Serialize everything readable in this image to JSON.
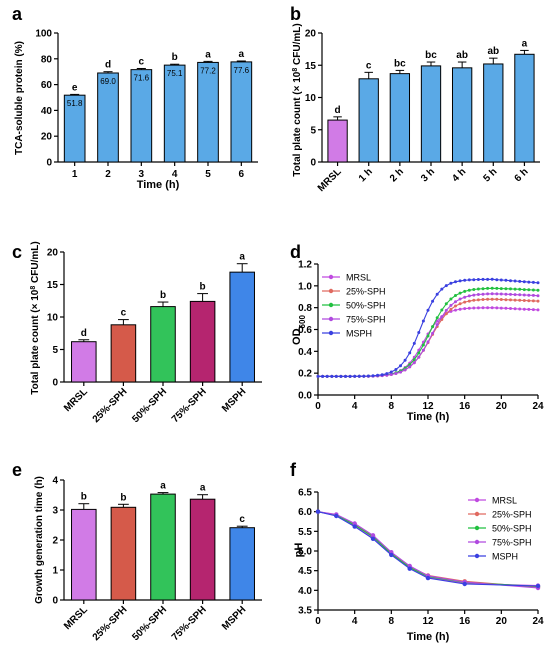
{
  "colors": {
    "bar_blue": "#5aa9e6",
    "mrsl": "#d17be6",
    "sph25": "#d55a4a",
    "sph50": "#32c35a",
    "sph75": "#b5256f",
    "msph": "#3f86e8",
    "line_mrsl": "#c04ae0",
    "line_25": "#e06a60",
    "line_50": "#22c040",
    "line_75": "#b04adf",
    "line_msph": "#3a40e0",
    "axis": "#000000"
  },
  "chart_data": [
    {
      "panel": "a",
      "type": "bar",
      "categories": [
        "1",
        "2",
        "3",
        "4",
        "5",
        "6"
      ],
      "values": [
        51.8,
        69.0,
        71.6,
        75.1,
        77.2,
        77.6
      ],
      "errors": [
        0.6,
        1.0,
        0.9,
        0.7,
        0.8,
        0.7
      ],
      "value_labels": [
        "51.8",
        "69.0",
        "71.6",
        "75.1",
        "77.2",
        "77.6"
      ],
      "letters": [
        "e",
        "d",
        "c",
        "b",
        "a",
        "a"
      ],
      "xlabel": "Time (h)",
      "ylabel": "TCA-soluble protein (%)",
      "ylim": [
        0,
        100
      ],
      "yticks": [
        "0",
        "20",
        "40",
        "60",
        "80",
        "100"
      ]
    },
    {
      "panel": "b",
      "type": "bar",
      "categories": [
        "MRSL",
        "1 h",
        "2 h",
        "3 h",
        "4 h",
        "5 h",
        "6 h"
      ],
      "values": [
        6.5,
        12.9,
        13.7,
        14.9,
        14.6,
        15.2,
        16.7
      ],
      "errors": [
        0.5,
        1.0,
        0.5,
        0.6,
        0.9,
        0.9,
        0.6
      ],
      "letters": [
        "d",
        "c",
        "bc",
        "bc",
        "ab",
        "ab",
        "a"
      ],
      "ylabel_pre": "Total plate count (× 10",
      "ylabel_sup": "8",
      "ylabel_post": " CFU/mL)",
      "ylim": [
        0,
        20
      ],
      "yticks": [
        "0",
        "5",
        "10",
        "15",
        "20"
      ]
    },
    {
      "panel": "c",
      "type": "bar",
      "categories": [
        "MRSL",
        "25%-SPH",
        "50%-SPH",
        "75%-SPH",
        "MSPH"
      ],
      "values": [
        6.2,
        8.8,
        11.6,
        12.4,
        16.9
      ],
      "errors": [
        0.3,
        0.8,
        0.7,
        1.2,
        1.3
      ],
      "letters": [
        "d",
        "c",
        "b",
        "b",
        "a"
      ],
      "ylabel_pre": "Total plate count (× 10",
      "ylabel_sup": "8",
      "ylabel_post": " CFU/mL)",
      "ylim": [
        0,
        20
      ],
      "yticks": [
        "0",
        "5",
        "10",
        "15",
        "20"
      ]
    },
    {
      "panel": "d",
      "type": "line",
      "xlabel": "Time (h)",
      "ylabel_pre": "OD",
      "ylabel_sub": "600",
      "xlim": [
        0,
        24
      ],
      "ylim": [
        0,
        1.2
      ],
      "xticks": [
        "0",
        "4",
        "8",
        "12",
        "16",
        "20",
        "24"
      ],
      "yticks": [
        "0.0",
        "0.2",
        "0.4",
        "0.6",
        "0.8",
        "1.0",
        "1.2"
      ],
      "legend": "top-left",
      "series": [
        {
          "name": "MRSL",
          "plateau": 0.8,
          "mid": 11.5,
          "k": 0.95
        },
        {
          "name": "25%-SPH",
          "plateau": 0.88,
          "mid": 12.3,
          "k": 0.85
        },
        {
          "name": "50%-SPH",
          "plateau": 0.98,
          "mid": 12.2,
          "k": 0.85
        },
        {
          "name": "75%-SPH",
          "plateau": 0.93,
          "mid": 12.4,
          "k": 0.85
        },
        {
          "name": "MSPH",
          "plateau": 1.06,
          "mid": 11.2,
          "k": 0.95
        }
      ]
    },
    {
      "panel": "e",
      "type": "bar",
      "categories": [
        "MRSL",
        "25%-SPH",
        "50%-SPH",
        "75%-SPH",
        "MSPH"
      ],
      "values": [
        3.02,
        3.09,
        3.53,
        3.36,
        2.41
      ],
      "errors": [
        0.19,
        0.1,
        0.05,
        0.15,
        0.05
      ],
      "letters": [
        "b",
        "b",
        "a",
        "a",
        "c"
      ],
      "ylabel": "Growth generation time (h)",
      "ylim": [
        0,
        4
      ],
      "yticks": [
        "0",
        "1",
        "2",
        "3",
        "4"
      ]
    },
    {
      "panel": "f",
      "type": "line",
      "xlabel": "Time (h)",
      "ylabel": "pH",
      "xlim": [
        0,
        24
      ],
      "ylim": [
        3.5,
        6.5
      ],
      "xticks": [
        "0",
        "4",
        "8",
        "12",
        "16",
        "20",
        "24"
      ],
      "yticks": [
        "3.5",
        "4.0",
        "4.5",
        "5.0",
        "5.5",
        "6.0",
        "6.5"
      ],
      "legend": "top-right",
      "x": [
        0,
        2,
        4,
        6,
        8,
        10,
        12,
        16,
        24
      ],
      "series": [
        {
          "name": "MRSL",
          "values": [
            6.0,
            5.9,
            5.64,
            5.33,
            4.92,
            4.57,
            4.33,
            4.18,
            4.12
          ]
        },
        {
          "name": "25%-SPH",
          "values": [
            6.0,
            5.92,
            5.68,
            5.38,
            4.95,
            4.6,
            4.38,
            4.23,
            4.08
          ]
        },
        {
          "name": "50%-SPH",
          "values": [
            6.0,
            5.91,
            5.66,
            5.36,
            4.93,
            4.58,
            4.35,
            4.2,
            4.1
          ]
        },
        {
          "name": "75%-SPH",
          "values": [
            6.0,
            5.93,
            5.7,
            5.4,
            4.97,
            4.62,
            4.37,
            4.21,
            4.06
          ]
        },
        {
          "name": "MSPH",
          "values": [
            6.0,
            5.89,
            5.62,
            5.31,
            4.9,
            4.55,
            4.31,
            4.16,
            4.11
          ]
        }
      ]
    }
  ]
}
